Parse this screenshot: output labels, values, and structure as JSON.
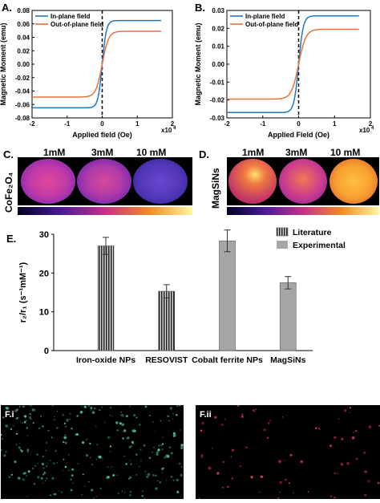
{
  "panels": {
    "A": {
      "label": "A.",
      "ylabel": "Magnetic Moment (emu)",
      "xlabel": "Applied field (Oe)",
      "exponent": "x10",
      "exponent_power": "4"
    },
    "B": {
      "label": "B.",
      "ylabel": "Magnetic Moment (emu)",
      "xlabel": "Applied Field (Oe)",
      "exponent": "x10",
      "exponent_power": "4"
    },
    "C": {
      "label": "C.",
      "side_label": "CoFe₂O₄",
      "concentrations": [
        "1mM",
        "3mM",
        "10 mM"
      ]
    },
    "D": {
      "label": "D.",
      "side_label": "MagSiNs",
      "concentrations": [
        "1mM",
        "3mM",
        "10 mM"
      ]
    },
    "E": {
      "label": "E.",
      "ylabel": "r₂/r₁ (s⁻¹mM⁻¹)"
    },
    "Fi": {
      "label": "F.i"
    },
    "Fii": {
      "label": "F.ii"
    }
  },
  "colors": {
    "in_plane": "#1f77c4",
    "out_of_plane": "#e8703a",
    "literature": "#555555",
    "experimental": "#a6a6a6"
  },
  "chart_data": [
    {
      "type": "line",
      "title": "",
      "xlabel": "Applied field (Oe)",
      "ylabel": "Magnetic Moment (emu)",
      "xlim": [
        -2,
        2
      ],
      "ylim": [
        -0.08,
        0.08
      ],
      "xticks": [
        "-2",
        "-1",
        "0",
        "1",
        "2"
      ],
      "yticks": [
        "-0.08",
        "-0.06",
        "-0.04",
        "-0.02",
        "0.00",
        "0.02",
        "0.04",
        "0.06",
        "0.08"
      ],
      "legend": "top-left",
      "series": [
        {
          "name": "In-plane field",
          "saturation": 0.065,
          "width": 0.12
        },
        {
          "name": "Out-of-plane field",
          "saturation": 0.049,
          "width": 0.18
        }
      ]
    },
    {
      "type": "line",
      "title": "",
      "xlabel": "Applied Field (Oe)",
      "ylabel": "Magnetic Moment (emu)",
      "xlim": [
        -2,
        2
      ],
      "ylim": [
        -0.03,
        0.03
      ],
      "xticks": [
        "-2",
        "-1",
        "0",
        "1",
        "2"
      ],
      "yticks": [
        "-0.03",
        "-0.02",
        "-0.01",
        "0.00",
        "0.01",
        "0.02",
        "0.03"
      ],
      "legend": "top-left",
      "series": [
        {
          "name": "In-plane field",
          "saturation": 0.027,
          "width": 0.13
        },
        {
          "name": "Out-of-plane field",
          "saturation": 0.0195,
          "width": 0.2
        }
      ]
    },
    {
      "type": "bar",
      "title": "",
      "xlabel": "",
      "ylabel": "r₂/r₁ (s⁻¹mM⁻¹)",
      "ylim": [
        0,
        30
      ],
      "yticks": [
        "0",
        "10",
        "20",
        "30"
      ],
      "legend": "top-right",
      "categories": [
        "Iron-oxide NPs",
        "RESOVIST",
        "Cobalt ferrite NPs",
        "MagSiNs"
      ],
      "series": [
        {
          "name": "Literature",
          "values": [
            27,
            15.3,
            null,
            null
          ],
          "errors": [
            2.2,
            1.7,
            null,
            null
          ]
        },
        {
          "name": "Experimental",
          "values": [
            null,
            null,
            28.3,
            17.5
          ],
          "errors": [
            null,
            null,
            2.8,
            1.6
          ]
        }
      ]
    }
  ]
}
